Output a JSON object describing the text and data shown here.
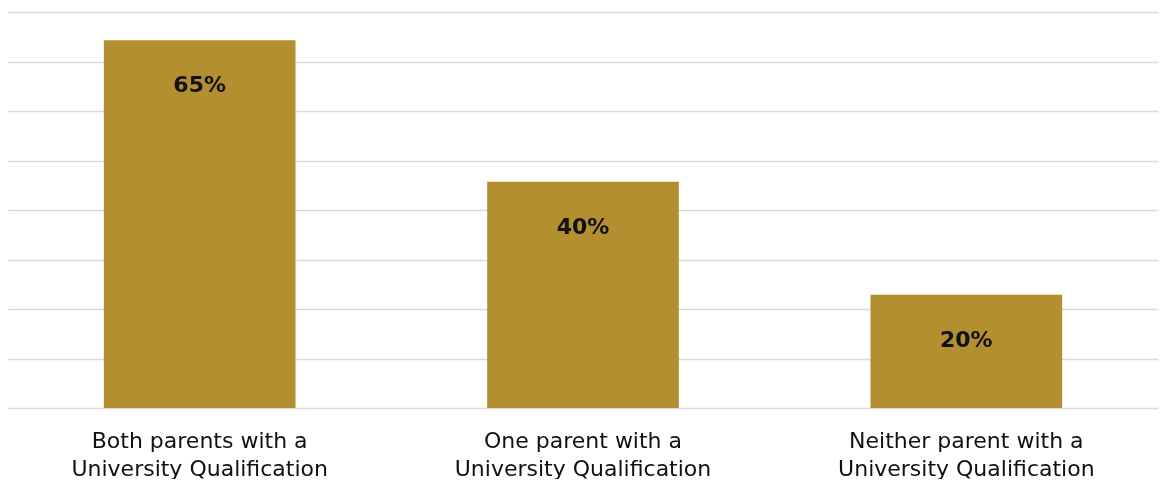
{
  "chart_data": {
    "type": "bar",
    "categories": [
      "Both parents with a\nUniversity Qualification",
      "One parent with a\nUniversity Qualification",
      "Neither parent with a\nUniversity Qualification"
    ],
    "values": [
      65,
      40,
      20
    ],
    "value_labels": [
      "65%",
      "40%",
      "20%"
    ],
    "color": "#b38f30",
    "ylim": [
      0,
      70
    ],
    "yticks": [
      {
        "value": 0,
        "label": null
      },
      {
        "value": 8.75,
        "label": null
      },
      {
        "value": 17.5,
        "label": null
      },
      {
        "value": 26.25,
        "label": null
      },
      {
        "value": 35,
        "label": null
      },
      {
        "value": 43.75,
        "label": null
      },
      {
        "value": 52.5,
        "label": null
      },
      {
        "value": 61.25,
        "label": null
      },
      {
        "value": 70,
        "label": null
      }
    ],
    "grid": "y",
    "tick_labels": "x"
  }
}
